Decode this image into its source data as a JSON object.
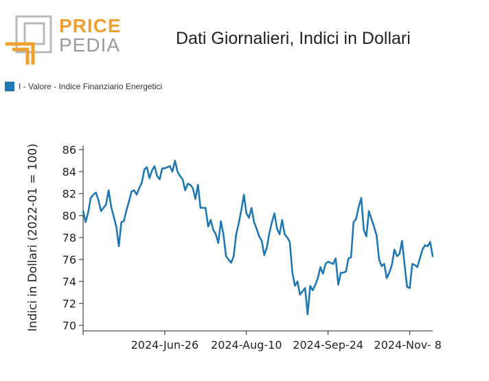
{
  "logo": {
    "word1": "PRICE",
    "word2": "PEDIA",
    "colors": {
      "orange": "#f0a030",
      "gray": "#9a9a9a"
    }
  },
  "chart_data": {
    "type": "line",
    "title": "Dati Giornalieri, Indici in Dollari",
    "ylabel": "Indici in Dollari (2022-01 = 100)",
    "xlabel": "",
    "ylim": [
      69.5,
      86.5
    ],
    "y_ticks": [
      70,
      72,
      74,
      76,
      78,
      80,
      82,
      84,
      86
    ],
    "x_ticks": [
      {
        "label": "",
        "index": 0
      },
      {
        "label": "2024-Jun-26",
        "index": 32
      },
      {
        "label": "2024-Aug-10",
        "index": 64
      },
      {
        "label": "2024-Sep-24",
        "index": 96
      },
      {
        "label": "2024-Nov- 8",
        "index": 128
      }
    ],
    "legend_position": "top-left",
    "grid": false,
    "series": [
      {
        "name": "I - Valore - Indice Finanziario Energetici",
        "color": "#1f77b4",
        "values": [
          80.4,
          79.4,
          80.3,
          81.6,
          81.9,
          82.1,
          81.4,
          80.4,
          80.7,
          81.0,
          82.3,
          80.8,
          79.9,
          79.0,
          77.2,
          79.4,
          79.5,
          80.5,
          81.3,
          82.2,
          82.3,
          81.9,
          82.5,
          83.0,
          84.2,
          84.4,
          83.4,
          84.1,
          84.5,
          83.6,
          83.3,
          84.3,
          84.3,
          84.4,
          84.5,
          84.0,
          85.0,
          84.0,
          83.6,
          83.3,
          82.3,
          82.9,
          82.8,
          82.5,
          81.5,
          82.8,
          80.7,
          80.7,
          80.7,
          79.0,
          79.6,
          78.7,
          78.3,
          77.5,
          79.5,
          78.3,
          76.3,
          76.0,
          75.7,
          76.3,
          78.3,
          79.3,
          80.5,
          81.9,
          80.2,
          79.8,
          80.7,
          79.4,
          78.8,
          78.1,
          77.7,
          76.4,
          77.1,
          78.4,
          79.4,
          80.2,
          78.8,
          78.3,
          79.6,
          78.3,
          78.0,
          77.6,
          74.8,
          73.6,
          74.0,
          72.8,
          73.1,
          73.4,
          71.0,
          73.6,
          73.2,
          73.7,
          74.3,
          75.3,
          74.7,
          75.6,
          75.8,
          75.7,
          75.6,
          76.1,
          73.7,
          74.8,
          74.8,
          74.9,
          76.1,
          76.2,
          79.4,
          79.7,
          80.8,
          81.6,
          78.7,
          78.1,
          80.4,
          79.7,
          79.0,
          78.2,
          76.0,
          75.4,
          75.6,
          74.3,
          74.8,
          75.5,
          76.9,
          76.3,
          76.5,
          77.7,
          75.5,
          73.5,
          73.4,
          75.6,
          75.5,
          75.3,
          76.1,
          76.9,
          77.3,
          77.2,
          77.6,
          76.3
        ]
      }
    ]
  }
}
